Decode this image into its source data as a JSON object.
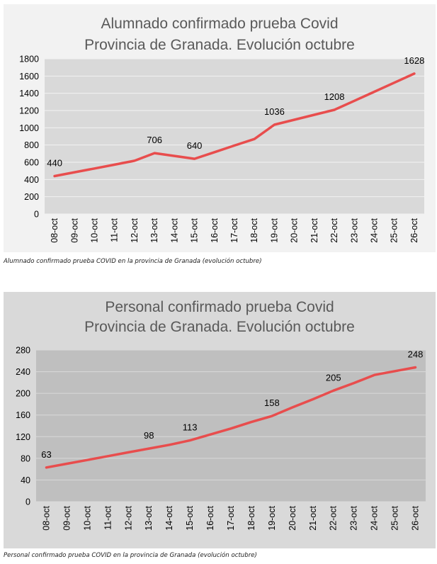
{
  "charts": [
    {
      "id": "alumnado",
      "title_lines": [
        "Alumnado confirmado prueba Covid",
        "Provincia de Granada. Evolución octubre"
      ],
      "caption": "Alumnado confirmado prueba COVID en la provincia de Granada (evolución octubre)",
      "colors": {
        "background": "#f2f2f2",
        "plot_area": "#d9d9d9",
        "gridline": "#f2f2f2",
        "line": "#e84d4d"
      }
    },
    {
      "id": "personal",
      "title_lines": [
        "Personal confirmado prueba Covid",
        "Provincia de Granada. Evolución octubre"
      ],
      "caption": "Personal confirmado prueba COVID en la provincia de Granada (evolución octubre)",
      "colors": {
        "background": "#d9d9d9",
        "plot_area": "#bfbfbf",
        "gridline": "#d9d9d9",
        "line": "#e84d4d"
      }
    }
  ],
  "chart_data": [
    {
      "type": "line",
      "title": "Alumnado confirmado prueba Covid Provincia de Granada. Evolución octubre",
      "categories": [
        "08-oct",
        "09-oct",
        "10-oct",
        "11-oct",
        "12-oct",
        "13-oct",
        "14-oct",
        "15-oct",
        "16-oct",
        "17-oct",
        "18-oct",
        "19-oct",
        "20-oct",
        "21-oct",
        "22-oct",
        "23-oct",
        "24-oct",
        "25-oct",
        "26-oct"
      ],
      "series": [
        {
          "values": [
            440,
            484,
            528,
            572,
            617,
            706,
            673,
            640,
            717,
            794,
            870,
            1036,
            1093,
            1151,
            1208,
            1313,
            1418,
            1523,
            1628
          ]
        }
      ],
      "data_labels": [
        {
          "category": "08-oct",
          "value": 440
        },
        {
          "category": "13-oct",
          "value": 706
        },
        {
          "category": "15-oct",
          "value": 640
        },
        {
          "category": "19-oct",
          "value": 1036
        },
        {
          "category": "22-oct",
          "value": 1208
        },
        {
          "category": "26-oct",
          "value": 1628
        }
      ],
      "y_ticks": [
        0,
        200,
        400,
        600,
        800,
        1000,
        1200,
        1400,
        1600,
        1800
      ],
      "ylim": [
        0,
        1800
      ],
      "grid": true,
      "legend": "none",
      "xlabel": "",
      "ylabel": ""
    },
    {
      "type": "line",
      "title": "Personal confirmado prueba Covid Provincia de Granada. Evolución octubre",
      "categories": [
        "08-oct",
        "09-oct",
        "10-oct",
        "11-oct",
        "12-oct",
        "13-oct",
        "14-oct",
        "15-oct",
        "16-oct",
        "17-oct",
        "18-oct",
        "19-oct",
        "20-oct",
        "21-oct",
        "22-oct",
        "23-oct",
        "24-oct",
        "25-oct",
        "26-oct"
      ],
      "series": [
        {
          "values": [
            63,
            70,
            77,
            84,
            91,
            98,
            105,
            113,
            124,
            135,
            147,
            158,
            174,
            189,
            205,
            219,
            234,
            241,
            248
          ]
        }
      ],
      "data_labels": [
        {
          "category": "08-oct",
          "value": 63
        },
        {
          "category": "13-oct",
          "value": 98
        },
        {
          "category": "15-oct",
          "value": 113
        },
        {
          "category": "19-oct",
          "value": 158
        },
        {
          "category": "22-oct",
          "value": 205
        },
        {
          "category": "26-oct",
          "value": 248
        }
      ],
      "y_ticks": [
        0,
        40,
        80,
        120,
        160,
        200,
        240,
        280
      ],
      "ylim": [
        0,
        280
      ],
      "grid": true,
      "legend": "none",
      "xlabel": "",
      "ylabel": ""
    }
  ]
}
